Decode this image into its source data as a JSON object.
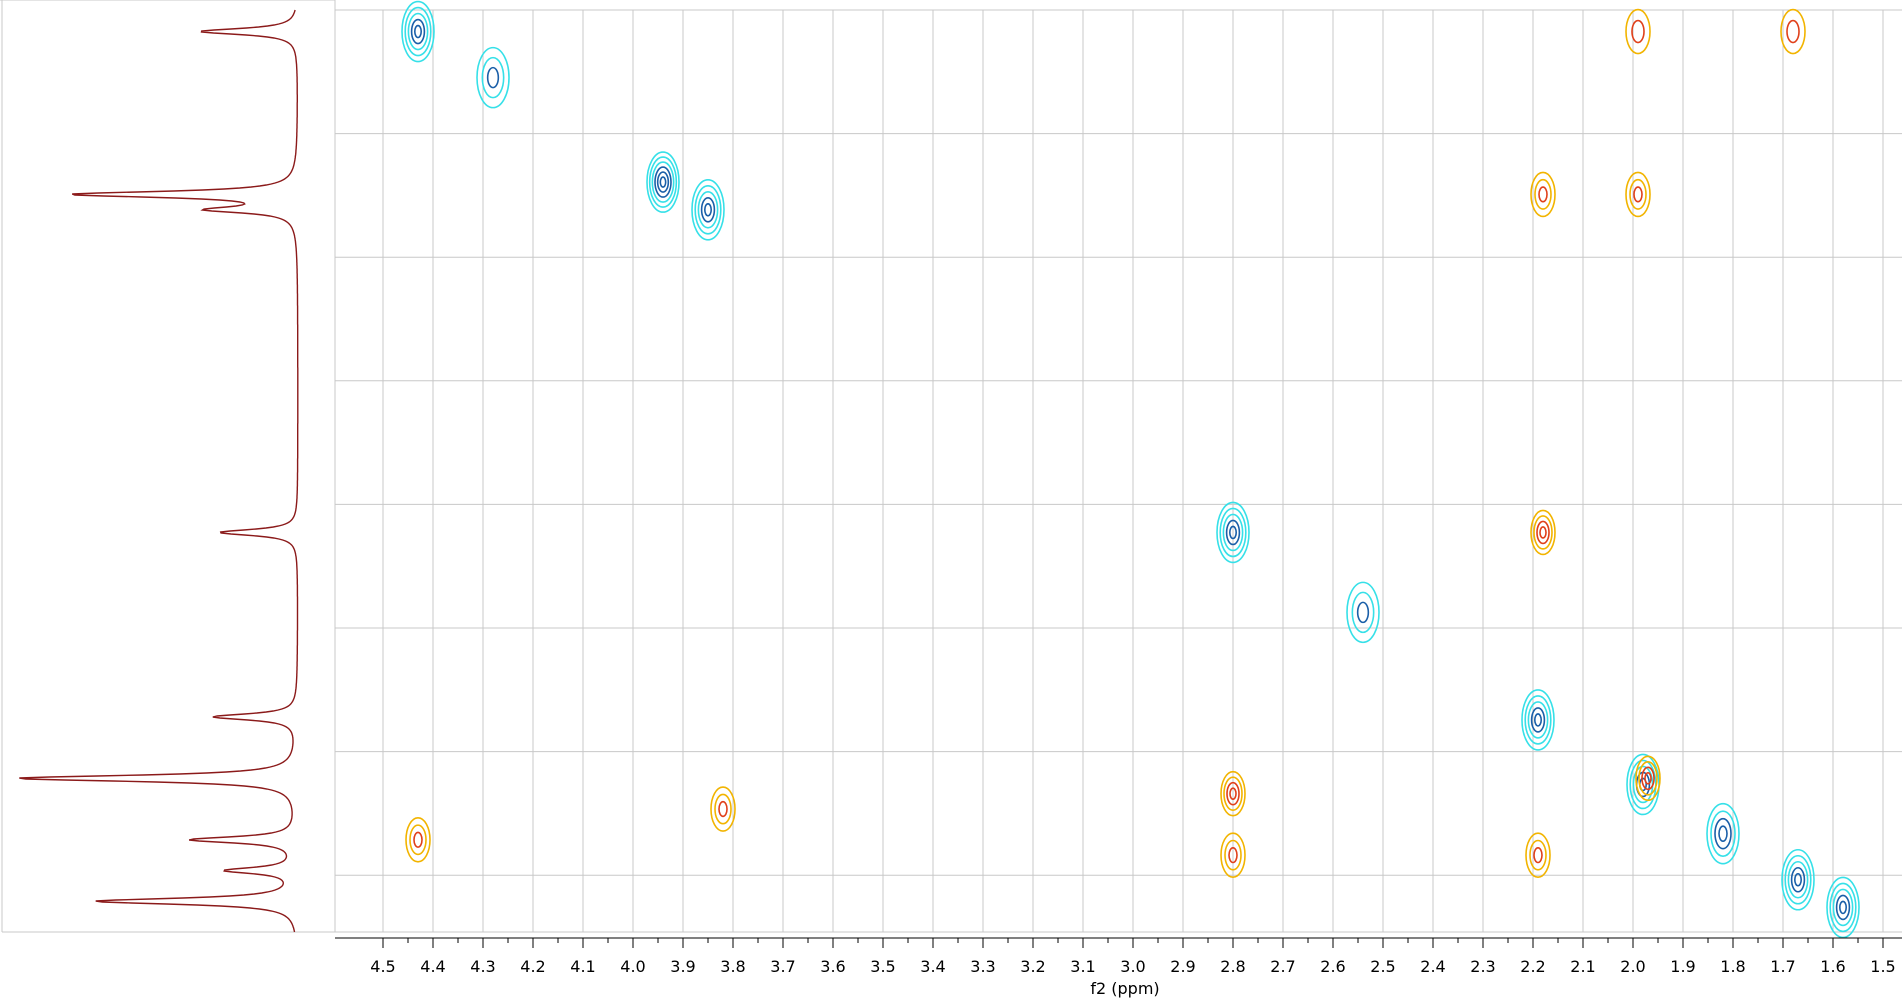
{
  "chart_data": {
    "type": "contour",
    "title": "",
    "xlabel": "f2 (ppm)",
    "ylabel": "",
    "x_axis": {
      "reversed": true,
      "range": [
        4.5,
        1.5
      ],
      "major_ticks": [
        4.5,
        4.4,
        4.3,
        4.2,
        4.1,
        4.0,
        3.9,
        3.8,
        3.7,
        3.6,
        3.5,
        3.4,
        3.3,
        3.2,
        3.1,
        3.0,
        2.9,
        2.8,
        2.7,
        2.6,
        2.5,
        2.4,
        2.3,
        2.2,
        2.1,
        2.0,
        1.9,
        1.8,
        1.7,
        1.6,
        1.5
      ],
      "tick_labels": [
        "4.5",
        "4.4",
        "4.3",
        "4.2",
        "4.1",
        "4.0",
        "3.9",
        "3.8",
        "3.7",
        "3.6",
        "3.5",
        "3.4",
        "3.3",
        "3.2",
        "3.1",
        "3.0",
        "2.9",
        "2.8",
        "2.7",
        "2.6",
        "2.5",
        "2.4",
        "2.3",
        "2.2",
        "2.1",
        "2.0",
        "1.9",
        "1.8",
        "1.7",
        "1.6",
        "1.5"
      ]
    },
    "grid": true,
    "colors": {
      "positive_inner": "#1a5fa8",
      "positive_outer": "#36e0e8",
      "negative_inner": "#e0401a",
      "negative_outer": "#f2b400",
      "projection": "#8b1a1a",
      "grid": "#c8c8c8"
    },
    "projection_spectrum": {
      "position": "left",
      "peaks": [
        {
          "ppm": 2.0,
          "intensity": 1.0
        },
        {
          "ppm": 1.6,
          "intensity": 0.72
        },
        {
          "ppm": 1.8,
          "intensity": 0.38
        },
        {
          "ppm": 2.2,
          "intensity": 0.3
        },
        {
          "ppm": 2.8,
          "intensity": 0.28
        },
        {
          "ppm": 3.9,
          "intensity": 0.8
        },
        {
          "ppm": 3.85,
          "intensity": 0.3
        },
        {
          "ppm": 4.43,
          "intensity": 0.35
        },
        {
          "ppm": 1.7,
          "intensity": 0.25
        }
      ]
    },
    "cross_peaks": [
      {
        "x": 4.43,
        "y": 4.43,
        "sign": "positive",
        "levels": 5
      },
      {
        "x": 3.94,
        "y": 3.94,
        "sign": "positive",
        "levels": 6
      },
      {
        "x": 3.85,
        "y": 3.85,
        "sign": "positive",
        "levels": 5
      },
      {
        "x": 2.8,
        "y": 2.8,
        "sign": "positive",
        "levels": 5
      },
      {
        "x": 2.19,
        "y": 2.19,
        "sign": "positive",
        "levels": 5
      },
      {
        "x": 1.98,
        "y": 1.98,
        "sign": "positive",
        "levels": 5
      },
      {
        "x": 1.82,
        "y": 1.82,
        "sign": "positive",
        "levels": 4
      },
      {
        "x": 1.67,
        "y": 1.67,
        "sign": "positive",
        "levels": 5
      },
      {
        "x": 1.58,
        "y": 1.58,
        "sign": "positive",
        "levels": 5
      },
      {
        "x": 4.28,
        "y": 4.28,
        "sign": "positive",
        "levels": 3
      },
      {
        "x": 2.54,
        "y": 2.54,
        "sign": "positive",
        "levels": 3
      },
      {
        "x": 4.43,
        "y": 1.8,
        "sign": "negative",
        "levels": 3
      },
      {
        "x": 3.82,
        "y": 1.9,
        "sign": "negative",
        "levels": 3
      },
      {
        "x": 2.8,
        "y": 1.95,
        "sign": "negative",
        "levels": 4
      },
      {
        "x": 2.8,
        "y": 1.75,
        "sign": "negative",
        "levels": 3
      },
      {
        "x": 2.19,
        "y": 1.75,
        "sign": "negative",
        "levels": 3
      },
      {
        "x": 2.18,
        "y": 2.8,
        "sign": "negative",
        "levels": 4
      },
      {
        "x": 1.97,
        "y": 2.0,
        "sign": "negative",
        "levels": 4
      },
      {
        "x": 2.18,
        "y": 3.9,
        "sign": "negative",
        "levels": 3
      },
      {
        "x": 1.99,
        "y": 3.9,
        "sign": "negative",
        "levels": 3
      },
      {
        "x": 1.99,
        "y": 4.43,
        "sign": "negative",
        "levels": 2
      },
      {
        "x": 1.68,
        "y": 4.43,
        "sign": "negative",
        "levels": 2
      }
    ]
  }
}
